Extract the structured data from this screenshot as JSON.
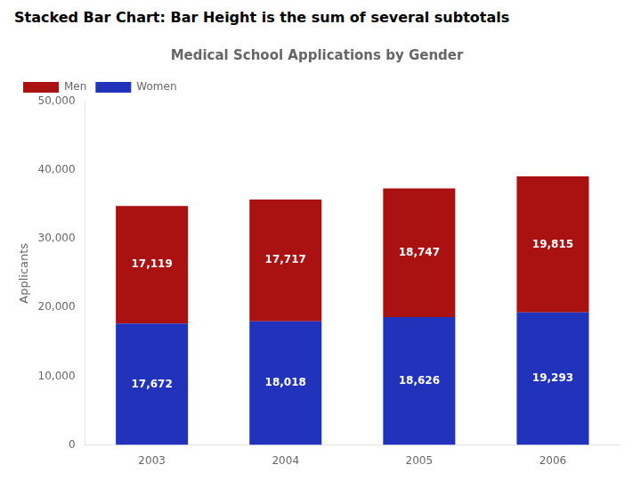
{
  "chart_data": {
    "type": "bar",
    "stacked": true,
    "title": "Medical School Applications by Gender",
    "subtitle": "Stacked Bar Chart: Bar Height is the sum of several subtotals",
    "ylabel": "Applicants",
    "categories": [
      "2003",
      "2004",
      "2005",
      "2006"
    ],
    "series": [
      {
        "name": "Women",
        "color": "#2233BB",
        "values": [
          17672,
          18018,
          18626,
          19293
        ],
        "value_labels": [
          "17,672",
          "18,018",
          "18,626",
          "19,293"
        ]
      },
      {
        "name": "Men",
        "color": "#AA1111",
        "values": [
          17119,
          17717,
          18747,
          19815
        ],
        "value_labels": [
          "17,119",
          "17,717",
          "18,747",
          "19,815"
        ]
      }
    ],
    "ylim": [
      0,
      50000
    ],
    "yticks": [
      0,
      {
        "value": 10000,
        "label": "10,000"
      },
      {
        "value": 20000,
        "label": "20,000"
      },
      {
        "value": 30000,
        "label": "30,000"
      },
      {
        "value": 40000,
        "label": "40,000"
      },
      {
        "value": 50000,
        "label": "50,000"
      }
    ],
    "grid": false,
    "legend": "upper left",
    "data_labels": true
  }
}
